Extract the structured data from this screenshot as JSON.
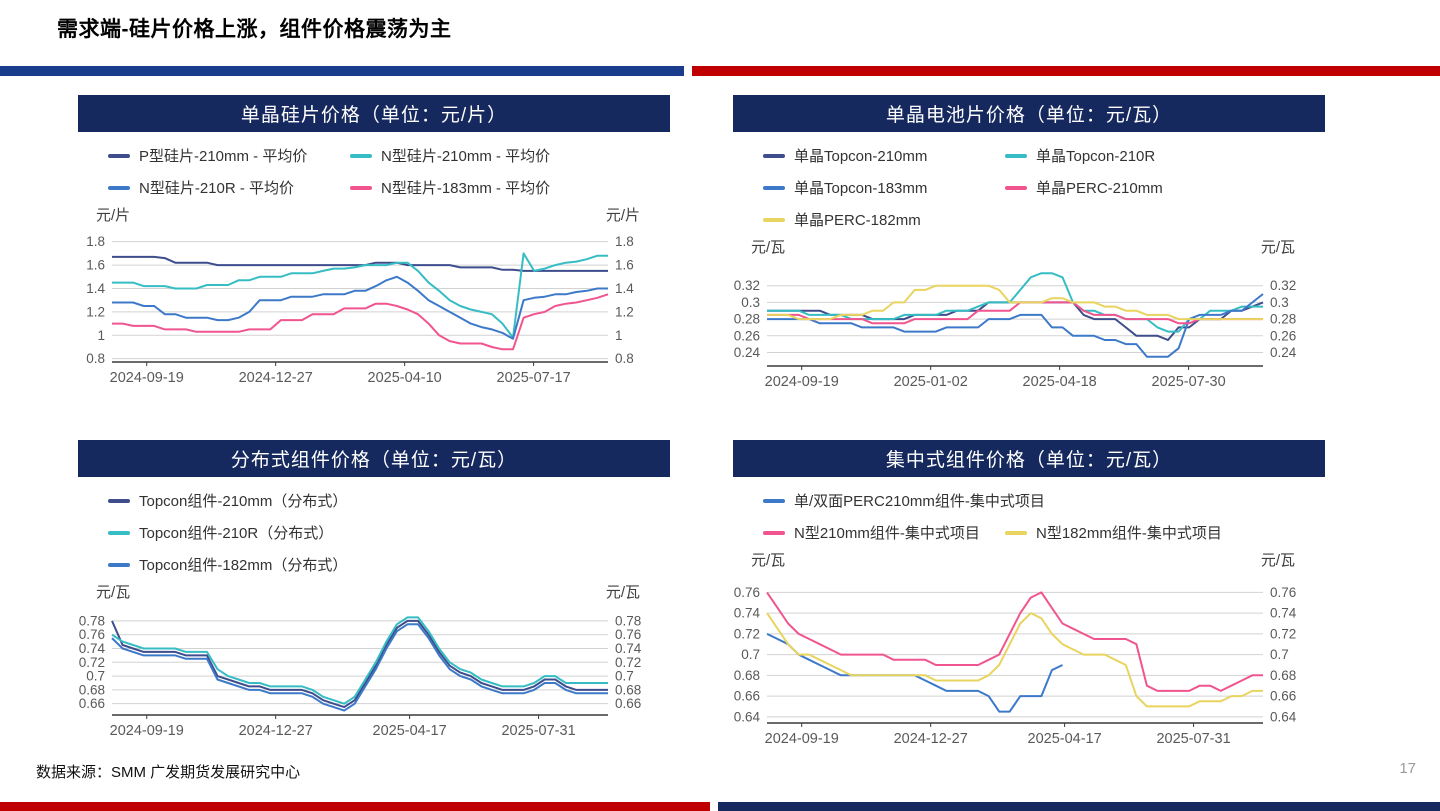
{
  "page": {
    "title": "需求端-硅片价格上涨，组件价格震荡为主",
    "source": "数据来源：SMM 广发期货发展研究中心",
    "page_number": "17"
  },
  "colors": {
    "header_bg": "#16295E",
    "accent_blue": "#1A3C8C",
    "accent_red": "#C00000",
    "grid": "#D2D2D2",
    "axis": "#3A3A3A",
    "tick_text": "#595959",
    "series": {
      "navy": "#3E4D8C",
      "teal": "#36BDC4",
      "blue": "#3D79C9",
      "pink": "#F0558F",
      "yellow": "#E8D45F"
    }
  },
  "chart_data": [
    {
      "type": "line",
      "title": "单晶硅片价格（单位：元/片）",
      "unit": "元/片",
      "grid": true,
      "legend_position": "top",
      "ylim": [
        0.78,
        1.84
      ],
      "yticks": [
        0.8,
        1,
        1.2,
        1.4,
        1.6,
        1.8
      ],
      "x_ticks": [
        {
          "label": "2024-09-19",
          "pos": 0.07
        },
        {
          "label": "2024-12-27",
          "pos": 0.33
        },
        {
          "label": "2025-04-10",
          "pos": 0.59
        },
        {
          "label": "2025-07-17",
          "pos": 0.85
        }
      ],
      "legend_rows": [
        [
          0,
          1
        ],
        [
          2,
          3
        ]
      ],
      "series": [
        {
          "name": "P型硅片-210mm - 平均价",
          "color": "navy",
          "values": [
            1.67,
            1.67,
            1.67,
            1.67,
            1.67,
            1.66,
            1.62,
            1.62,
            1.62,
            1.62,
            1.6,
            1.6,
            1.6,
            1.6,
            1.6,
            1.6,
            1.6,
            1.6,
            1.6,
            1.6,
            1.6,
            1.6,
            1.6,
            1.6,
            1.6,
            1.62,
            1.62,
            1.62,
            1.6,
            1.6,
            1.6,
            1.6,
            1.6,
            1.58,
            1.58,
            1.58,
            1.58,
            1.56,
            1.56,
            1.55,
            1.55,
            1.55,
            1.55,
            1.55,
            1.55,
            1.55,
            1.55,
            1.55
          ]
        },
        {
          "name": "N型硅片-210mm - 平均价",
          "color": "teal",
          "values": [
            1.45,
            1.45,
            1.45,
            1.42,
            1.42,
            1.42,
            1.4,
            1.4,
            1.4,
            1.43,
            1.43,
            1.43,
            1.47,
            1.47,
            1.5,
            1.5,
            1.5,
            1.53,
            1.53,
            1.53,
            1.55,
            1.57,
            1.57,
            1.58,
            1.6,
            1.6,
            1.6,
            1.62,
            1.62,
            1.55,
            1.45,
            1.38,
            1.3,
            1.25,
            1.22,
            1.2,
            1.18,
            1.1,
            0.98,
            1.7,
            1.55,
            1.57,
            1.6,
            1.62,
            1.63,
            1.65,
            1.68,
            1.68
          ]
        },
        {
          "name": "N型硅片-210R - 平均价",
          "color": "blue",
          "values": [
            1.28,
            1.28,
            1.28,
            1.25,
            1.25,
            1.18,
            1.18,
            1.15,
            1.15,
            1.15,
            1.13,
            1.13,
            1.15,
            1.2,
            1.3,
            1.3,
            1.3,
            1.33,
            1.33,
            1.33,
            1.35,
            1.35,
            1.35,
            1.38,
            1.38,
            1.42,
            1.47,
            1.5,
            1.45,
            1.38,
            1.3,
            1.25,
            1.2,
            1.15,
            1.1,
            1.07,
            1.05,
            1.02,
            0.97,
            1.3,
            1.32,
            1.33,
            1.35,
            1.35,
            1.37,
            1.38,
            1.4,
            1.4
          ]
        },
        {
          "name": "N型硅片-183mm - 平均价",
          "color": "pink",
          "values": [
            1.1,
            1.1,
            1.08,
            1.08,
            1.08,
            1.05,
            1.05,
            1.05,
            1.03,
            1.03,
            1.03,
            1.03,
            1.03,
            1.05,
            1.05,
            1.05,
            1.13,
            1.13,
            1.13,
            1.18,
            1.18,
            1.18,
            1.23,
            1.23,
            1.23,
            1.27,
            1.27,
            1.25,
            1.22,
            1.18,
            1.1,
            1.0,
            0.95,
            0.93,
            0.93,
            0.93,
            0.9,
            0.88,
            0.88,
            1.15,
            1.18,
            1.2,
            1.25,
            1.27,
            1.28,
            1.3,
            1.32,
            1.35
          ]
        }
      ]
    },
    {
      "type": "line",
      "title": "单晶电池片价格（单位：元/瓦）",
      "unit": "元/瓦",
      "grid": true,
      "legend_position": "top",
      "ylim": [
        0.225,
        0.34
      ],
      "yticks": [
        0.24,
        0.26,
        0.28,
        0.3,
        0.32
      ],
      "x_ticks": [
        {
          "label": "2024-09-19",
          "pos": 0.07
        },
        {
          "label": "2025-01-02",
          "pos": 0.33
        },
        {
          "label": "2025-04-18",
          "pos": 0.59
        },
        {
          "label": "2025-07-30",
          "pos": 0.85
        }
      ],
      "legend_rows": [
        [
          0,
          1
        ],
        [
          2,
          3
        ],
        [
          4
        ]
      ],
      "series": [
        {
          "name": "单晶Topcon-210mm",
          "color": "navy",
          "values": [
            0.29,
            0.29,
            0.29,
            0.29,
            0.29,
            0.29,
            0.285,
            0.285,
            0.285,
            0.285,
            0.28,
            0.28,
            0.28,
            0.28,
            0.285,
            0.285,
            0.285,
            0.285,
            0.29,
            0.29,
            0.29,
            0.3,
            0.3,
            0.3,
            0.3,
            0.3,
            0.3,
            0.3,
            0.3,
            0.3,
            0.285,
            0.28,
            0.28,
            0.28,
            0.27,
            0.26,
            0.26,
            0.26,
            0.255,
            0.27,
            0.27,
            0.28,
            0.28,
            0.28,
            0.29,
            0.29,
            0.295,
            0.3
          ]
        },
        {
          "name": "单晶Topcon-210R",
          "color": "teal",
          "values": [
            0.29,
            0.29,
            0.29,
            0.29,
            0.285,
            0.285,
            0.285,
            0.285,
            0.28,
            0.28,
            0.28,
            0.28,
            0.28,
            0.285,
            0.285,
            0.285,
            0.285,
            0.29,
            0.29,
            0.29,
            0.295,
            0.3,
            0.3,
            0.3,
            0.315,
            0.33,
            0.335,
            0.335,
            0.33,
            0.3,
            0.29,
            0.29,
            0.285,
            0.285,
            0.28,
            0.28,
            0.28,
            0.27,
            0.265,
            0.265,
            0.28,
            0.28,
            0.29,
            0.29,
            0.29,
            0.295,
            0.295,
            0.295
          ]
        },
        {
          "name": "单晶Topcon-183mm",
          "color": "blue",
          "values": [
            0.28,
            0.28,
            0.28,
            0.28,
            0.28,
            0.275,
            0.275,
            0.275,
            0.275,
            0.27,
            0.27,
            0.27,
            0.27,
            0.265,
            0.265,
            0.265,
            0.265,
            0.27,
            0.27,
            0.27,
            0.27,
            0.28,
            0.28,
            0.28,
            0.285,
            0.285,
            0.285,
            0.27,
            0.27,
            0.26,
            0.26,
            0.26,
            0.255,
            0.255,
            0.25,
            0.25,
            0.235,
            0.235,
            0.235,
            0.245,
            0.28,
            0.285,
            0.285,
            0.285,
            0.29,
            0.29,
            0.3,
            0.31
          ]
        },
        {
          "name": "单晶PERC-210mm",
          "color": "pink",
          "values": [
            0.285,
            0.285,
            0.285,
            0.285,
            0.28,
            0.28,
            0.28,
            0.28,
            0.28,
            0.28,
            0.275,
            0.275,
            0.275,
            0.275,
            0.28,
            0.28,
            0.28,
            0.28,
            0.28,
            0.28,
            0.29,
            0.29,
            0.29,
            0.29,
            0.3,
            0.3,
            0.3,
            0.3,
            0.3,
            0.3,
            0.29,
            0.285,
            0.285,
            0.285,
            0.28,
            0.28,
            0.28,
            0.28,
            0.28,
            0.275,
            0.275,
            0.28,
            0.28,
            0.28,
            0.28,
            0.28,
            0.28,
            0.28
          ]
        },
        {
          "name": "单晶PERC-182mm",
          "color": "yellow",
          "values": [
            0.285,
            0.285,
            0.285,
            0.28,
            0.28,
            0.28,
            0.28,
            0.285,
            0.285,
            0.285,
            0.29,
            0.29,
            0.3,
            0.3,
            0.315,
            0.315,
            0.32,
            0.32,
            0.32,
            0.32,
            0.32,
            0.32,
            0.315,
            0.3,
            0.3,
            0.3,
            0.3,
            0.305,
            0.305,
            0.3,
            0.3,
            0.3,
            0.295,
            0.295,
            0.29,
            0.29,
            0.285,
            0.285,
            0.285,
            0.28,
            0.28,
            0.28,
            0.28,
            0.28,
            0.28,
            0.28,
            0.28,
            0.28
          ]
        }
      ]
    },
    {
      "type": "line",
      "title": "分布式组件价格（单位：元/瓦）",
      "unit": "元/瓦",
      "grid": true,
      "legend_position": "top",
      "ylim": [
        0.645,
        0.79
      ],
      "yticks": [
        0.66,
        0.68,
        0.7,
        0.72,
        0.74,
        0.76,
        0.78
      ],
      "x_ticks": [
        {
          "label": "2024-09-19",
          "pos": 0.07
        },
        {
          "label": "2024-12-27",
          "pos": 0.33
        },
        {
          "label": "2025-04-17",
          "pos": 0.6
        },
        {
          "label": "2025-07-31",
          "pos": 0.86
        }
      ],
      "legend_rows": [
        [
          0
        ],
        [
          1
        ],
        [
          2
        ]
      ],
      "series": [
        {
          "name": "Topcon组件-210mm（分布式）",
          "color": "navy",
          "values": [
            0.78,
            0.745,
            0.74,
            0.735,
            0.735,
            0.735,
            0.735,
            0.73,
            0.73,
            0.73,
            0.7,
            0.695,
            0.69,
            0.685,
            0.685,
            0.68,
            0.68,
            0.68,
            0.68,
            0.675,
            0.665,
            0.66,
            0.655,
            0.665,
            0.69,
            0.715,
            0.745,
            0.77,
            0.78,
            0.78,
            0.76,
            0.735,
            0.715,
            0.705,
            0.7,
            0.69,
            0.685,
            0.68,
            0.68,
            0.68,
            0.685,
            0.695,
            0.695,
            0.685,
            0.68,
            0.68,
            0.68,
            0.68
          ]
        },
        {
          "name": "Topcon组件-210R（分布式）",
          "color": "teal",
          "values": [
            0.76,
            0.75,
            0.745,
            0.74,
            0.74,
            0.74,
            0.74,
            0.735,
            0.735,
            0.735,
            0.71,
            0.7,
            0.695,
            0.69,
            0.69,
            0.685,
            0.685,
            0.685,
            0.685,
            0.68,
            0.67,
            0.665,
            0.66,
            0.67,
            0.695,
            0.72,
            0.75,
            0.775,
            0.785,
            0.785,
            0.765,
            0.74,
            0.72,
            0.71,
            0.705,
            0.695,
            0.69,
            0.685,
            0.685,
            0.685,
            0.69,
            0.7,
            0.7,
            0.69,
            0.69,
            0.69,
            0.69,
            0.69
          ]
        },
        {
          "name": "Topcon组件-182mm（分布式）",
          "color": "blue",
          "values": [
            0.755,
            0.74,
            0.735,
            0.73,
            0.73,
            0.73,
            0.73,
            0.725,
            0.725,
            0.725,
            0.695,
            0.69,
            0.685,
            0.68,
            0.68,
            0.675,
            0.675,
            0.675,
            0.675,
            0.67,
            0.66,
            0.655,
            0.65,
            0.66,
            0.685,
            0.71,
            0.74,
            0.765,
            0.775,
            0.775,
            0.755,
            0.73,
            0.71,
            0.7,
            0.695,
            0.685,
            0.68,
            0.675,
            0.675,
            0.675,
            0.68,
            0.69,
            0.69,
            0.68,
            0.675,
            0.675,
            0.675,
            0.675
          ]
        }
      ]
    },
    {
      "type": "line",
      "title": "集中式组件价格（单位：元/瓦）",
      "unit": "元/瓦",
      "grid": true,
      "legend_position": "top",
      "ylim": [
        0.635,
        0.77
      ],
      "yticks": [
        0.64,
        0.66,
        0.68,
        0.7,
        0.72,
        0.74,
        0.76
      ],
      "x_ticks": [
        {
          "label": "2024-09-19",
          "pos": 0.07
        },
        {
          "label": "2024-12-27",
          "pos": 0.33
        },
        {
          "label": "2025-04-17",
          "pos": 0.6
        },
        {
          "label": "2025-07-31",
          "pos": 0.86
        }
      ],
      "legend_rows": [
        [
          0
        ],
        [
          1,
          2
        ]
      ],
      "series": [
        {
          "name": "单/双面PERC210mm组件-集中式项目",
          "color": "blue",
          "values": [
            0.72,
            0.715,
            0.71,
            0.7,
            0.695,
            0.69,
            0.685,
            0.68,
            0.68,
            0.68,
            0.68,
            0.68,
            0.68,
            0.68,
            0.68,
            0.675,
            0.67,
            0.665,
            0.665,
            0.665,
            0.665,
            0.66,
            0.645,
            0.645,
            0.66,
            0.66,
            0.66,
            0.685,
            0.69,
            null,
            null,
            null,
            null,
            null,
            null,
            null,
            null,
            null,
            null,
            null,
            null,
            null,
            null,
            null,
            null,
            null,
            null,
            null
          ]
        },
        {
          "name": "N型210mm组件-集中式项目",
          "color": "pink",
          "values": [
            0.76,
            0.745,
            0.73,
            0.72,
            0.715,
            0.71,
            0.705,
            0.7,
            0.7,
            0.7,
            0.7,
            0.7,
            0.695,
            0.695,
            0.695,
            0.695,
            0.69,
            0.69,
            0.69,
            0.69,
            0.69,
            0.695,
            0.7,
            0.72,
            0.74,
            0.755,
            0.76,
            0.745,
            0.73,
            0.725,
            0.72,
            0.715,
            0.715,
            0.715,
            0.715,
            0.71,
            0.67,
            0.665,
            0.665,
            0.665,
            0.665,
            0.67,
            0.67,
            0.665,
            0.67,
            0.675,
            0.68,
            0.68
          ]
        },
        {
          "name": "N型182mm组件-集中式项目",
          "color": "yellow",
          "values": [
            0.74,
            0.725,
            0.71,
            0.7,
            0.7,
            0.695,
            0.69,
            0.685,
            0.68,
            0.68,
            0.68,
            0.68,
            0.68,
            0.68,
            0.68,
            0.68,
            0.675,
            0.675,
            0.675,
            0.675,
            0.675,
            0.68,
            0.69,
            0.71,
            0.73,
            0.74,
            0.735,
            0.72,
            0.71,
            0.705,
            0.7,
            0.7,
            0.7,
            0.695,
            0.69,
            0.66,
            0.65,
            0.65,
            0.65,
            0.65,
            0.65,
            0.655,
            0.655,
            0.655,
            0.66,
            0.66,
            0.665,
            0.665
          ]
        }
      ]
    }
  ]
}
